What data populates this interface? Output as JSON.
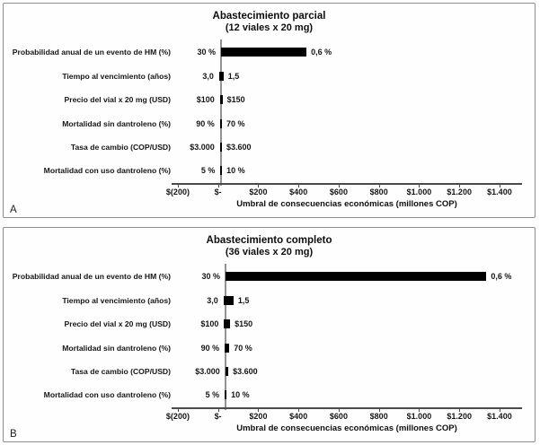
{
  "chart_data": [
    {
      "type": "bar",
      "variant": "tornado",
      "panel_letter": "A",
      "title": "Abastecimiento parcial",
      "subtitle": "(12 viales x 20 mg)",
      "xlabel": "Umbral de consecuencias económicas (millones COP)",
      "unit": "millones COP",
      "xlim": [
        -230,
        1510
      ],
      "grid": false,
      "legend": false,
      "bar_color": "#000000",
      "baseline_value": 15,
      "xticks": [
        {
          "value": -200,
          "label": "$(200)"
        },
        {
          "value": 0,
          "label": "$-"
        },
        {
          "value": 200,
          "label": "$200"
        },
        {
          "value": 400,
          "label": "$400"
        },
        {
          "value": 600,
          "label": "$600"
        },
        {
          "value": 800,
          "label": "$800"
        },
        {
          "value": 1000,
          "label": "$1.000"
        },
        {
          "value": 1200,
          "label": "$1.200"
        },
        {
          "value": 1400,
          "label": "$1.400"
        }
      ],
      "rows": [
        {
          "category": "Probabilidad anual de un evento de HM (%)",
          "low": 15,
          "high": 440,
          "low_label": "30 %",
          "high_label": "0,6 %"
        },
        {
          "category": "Tiempo al vencimiento (años)",
          "low": 5,
          "high": 27,
          "low_label": "3,0",
          "high_label": "1,5"
        },
        {
          "category": "Precio del vial x 20 mg (USD)",
          "low": 9,
          "high": 22,
          "low_label": "$100",
          "high_label": "$150"
        },
        {
          "category": "Mortalidad sin dantroleno (%)",
          "low": 9,
          "high": 19,
          "low_label": "90 %",
          "high_label": "70 %"
        },
        {
          "category": "Tasa de cambio (COP/USD)",
          "low": 9,
          "high": 19,
          "low_label": "$3.000",
          "high_label": "$3.600"
        },
        {
          "category": "Mortalidad con uso dantroleno (%)",
          "low": 12,
          "high": 20,
          "low_label": "5 %",
          "high_label": "10 %"
        }
      ]
    },
    {
      "type": "bar",
      "variant": "tornado",
      "panel_letter": "B",
      "title": "Abastecimiento completo",
      "subtitle": "(36 viales x 20 mg)",
      "xlabel": "Umbral de consecuencias económicas (millones COP)",
      "unit": "millones COP",
      "xlim": [
        -230,
        1510
      ],
      "grid": false,
      "legend": false,
      "bar_color": "#000000",
      "baseline_value": 37,
      "xticks": [
        {
          "value": -200,
          "label": "$(200)"
        },
        {
          "value": 0,
          "label": "$-"
        },
        {
          "value": 200,
          "label": "$200"
        },
        {
          "value": 400,
          "label": "$400"
        },
        {
          "value": 600,
          "label": "$600"
        },
        {
          "value": 800,
          "label": "$800"
        },
        {
          "value": 1000,
          "label": "$1.000"
        },
        {
          "value": 1200,
          "label": "$1.200"
        },
        {
          "value": 1400,
          "label": "$1.400"
        }
      ],
      "rows": [
        {
          "category": "Probabilidad anual de un evento de HM (%)",
          "low": 37,
          "high": 1335,
          "low_label": "30 %",
          "high_label": "0,6 %"
        },
        {
          "category": "Tiempo al vencimiento (años)",
          "low": 27,
          "high": 77,
          "low_label": "3,0",
          "high_label": "1,5"
        },
        {
          "category": "Precio del vial x 20 mg (USD)",
          "low": 30,
          "high": 60,
          "low_label": "$100",
          "high_label": "$150"
        },
        {
          "category": "Mortalidad sin dantroleno (%)",
          "low": 33,
          "high": 56,
          "low_label": "90 %",
          "high_label": "70 %"
        },
        {
          "category": "Tasa de cambio (COP/USD)",
          "low": 36,
          "high": 51,
          "low_label": "$3.000",
          "high_label": "$3.600"
        },
        {
          "category": "Mortalidad con uso dantroleno (%)",
          "low": 33,
          "high": 42,
          "low_label": "5 %",
          "high_label": "10 %"
        }
      ]
    }
  ]
}
